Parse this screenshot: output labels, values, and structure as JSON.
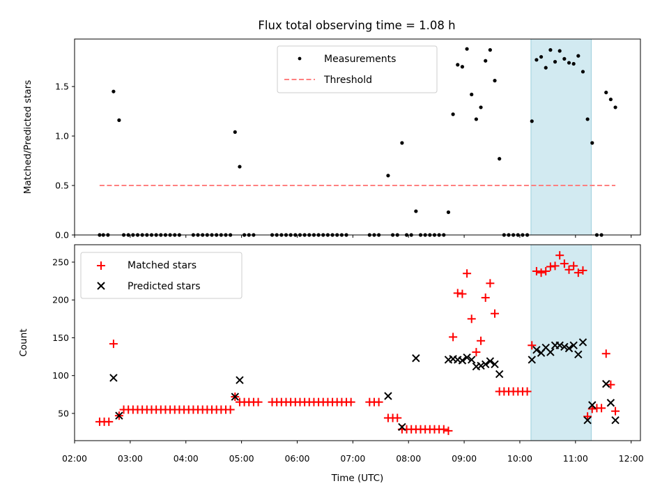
{
  "figure": {
    "title": "Flux total observing time = 1.08 h"
  },
  "chart_data": [
    {
      "type": "scatter",
      "title": "Flux total observing time = 1.08 h",
      "xlabel": "",
      "ylabel": "Matched/Predicted stars",
      "xlim": [
        "02:00",
        "12:10"
      ],
      "ylim": [
        0,
        1.98
      ],
      "yticks": [
        "0.0",
        "0.5",
        "1.0",
        "1.5"
      ],
      "grid": false,
      "legend_position": "top-center",
      "highlight_span": [
        "10:12",
        "11:17"
      ],
      "highlight_color": "#add8e6",
      "series": [
        {
          "name": "Measurements",
          "color": "#000000",
          "marker": "dot",
          "points": [
            [
              "02:27",
              0
            ],
            [
              "02:31",
              0
            ],
            [
              "02:36",
              0
            ],
            [
              "02:42",
              1.45
            ],
            [
              "02:48",
              1.16
            ],
            [
              "02:53",
              0
            ],
            [
              "02:58",
              0
            ],
            [
              "03:03",
              0
            ],
            [
              "03:08",
              0
            ],
            [
              "03:13",
              0
            ],
            [
              "03:18",
              0
            ],
            [
              "03:23",
              0
            ],
            [
              "03:28",
              0
            ],
            [
              "03:33",
              0
            ],
            [
              "03:38",
              0
            ],
            [
              "03:43",
              0
            ],
            [
              "03:48",
              0
            ],
            [
              "03:53",
              0
            ],
            [
              "04:08",
              0
            ],
            [
              "04:13",
              0
            ],
            [
              "04:18",
              0
            ],
            [
              "04:23",
              0
            ],
            [
              "04:28",
              0
            ],
            [
              "04:33",
              0
            ],
            [
              "04:38",
              0
            ],
            [
              "04:43",
              0
            ],
            [
              "04:48",
              0
            ],
            [
              "04:53",
              1.04
            ],
            [
              "04:58",
              0.69
            ],
            [
              "05:03",
              0
            ],
            [
              "05:08",
              0
            ],
            [
              "05:13",
              0
            ],
            [
              "05:33",
              0
            ],
            [
              "05:38",
              0
            ],
            [
              "05:43",
              0
            ],
            [
              "05:48",
              0
            ],
            [
              "05:53",
              0
            ],
            [
              "05:58",
              0
            ],
            [
              "06:03",
              0
            ],
            [
              "06:08",
              0
            ],
            [
              "06:13",
              0
            ],
            [
              "06:18",
              0
            ],
            [
              "06:23",
              0
            ],
            [
              "06:28",
              0
            ],
            [
              "06:33",
              0
            ],
            [
              "06:38",
              0
            ],
            [
              "06:43",
              0
            ],
            [
              "06:48",
              0
            ],
            [
              "06:53",
              0
            ],
            [
              "07:18",
              0
            ],
            [
              "07:23",
              0
            ],
            [
              "07:28",
              0
            ],
            [
              "07:38",
              0.6
            ],
            [
              "07:43",
              0
            ],
            [
              "07:48",
              0
            ],
            [
              "07:53",
              0.93
            ],
            [
              "07:58",
              0
            ],
            [
              "08:03",
              0
            ],
            [
              "08:08",
              0.24
            ],
            [
              "08:13",
              0
            ],
            [
              "08:18",
              0
            ],
            [
              "08:23",
              0
            ],
            [
              "08:28",
              0
            ],
            [
              "08:33",
              0
            ],
            [
              "08:38",
              0
            ],
            [
              "08:43",
              0.23
            ],
            [
              "08:48",
              1.22
            ],
            [
              "08:53",
              1.72
            ],
            [
              "08:58",
              1.7
            ],
            [
              "09:03",
              1.88
            ],
            [
              "09:08",
              1.42
            ],
            [
              "09:13",
              1.17
            ],
            [
              "09:18",
              1.29
            ],
            [
              "09:23",
              1.76
            ],
            [
              "09:28",
              1.87
            ],
            [
              "09:33",
              1.56
            ],
            [
              "09:38",
              0.77
            ],
            [
              "09:43",
              0
            ],
            [
              "09:48",
              0
            ],
            [
              "09:53",
              0
            ],
            [
              "09:58",
              0
            ],
            [
              "10:03",
              0
            ],
            [
              "10:08",
              0
            ],
            [
              "10:13",
              1.15
            ],
            [
              "10:18",
              1.77
            ],
            [
              "10:23",
              1.8
            ],
            [
              "10:28",
              1.69
            ],
            [
              "10:33",
              1.87
            ],
            [
              "10:38",
              1.75
            ],
            [
              "10:43",
              1.86
            ],
            [
              "10:48",
              1.78
            ],
            [
              "10:53",
              1.74
            ],
            [
              "10:58",
              1.73
            ],
            [
              "11:03",
              1.81
            ],
            [
              "11:08",
              1.65
            ],
            [
              "11:13",
              1.17
            ],
            [
              "11:18",
              0.93
            ],
            [
              "11:23",
              0
            ],
            [
              "11:28",
              0
            ],
            [
              "11:33",
              1.44
            ],
            [
              "11:38",
              1.37
            ],
            [
              "11:43",
              1.29
            ]
          ]
        },
        {
          "name": "Threshold",
          "color": "#ff8080",
          "style": "dashed",
          "points": [
            [
              "02:27",
              0.5
            ],
            [
              "11:43",
              0.5
            ]
          ]
        }
      ]
    },
    {
      "type": "scatter",
      "title": "",
      "xlabel": "Time (UTC)",
      "ylabel": "Count",
      "xlim": [
        "02:00",
        "12:10"
      ],
      "ylim": [
        14,
        273
      ],
      "yticks": [
        "50",
        "100",
        "150",
        "200",
        "250"
      ],
      "xticks": [
        "02:00",
        "03:00",
        "04:00",
        "05:00",
        "06:00",
        "07:00",
        "08:00",
        "09:00",
        "10:00",
        "11:00",
        "12:00"
      ],
      "grid": false,
      "legend_position": "top-left",
      "highlight_span": [
        "10:12",
        "11:17"
      ],
      "highlight_color": "#add8e6",
      "series": [
        {
          "name": "Matched stars",
          "color": "#ff0000",
          "marker": "plus",
          "points": [
            [
              "02:27",
              39
            ],
            [
              "02:32",
              39
            ],
            [
              "02:37",
              39
            ],
            [
              "02:42",
              142
            ],
            [
              "02:48",
              47
            ],
            [
              "02:53",
              55
            ],
            [
              "02:58",
              55
            ],
            [
              "03:03",
              55
            ],
            [
              "03:08",
              55
            ],
            [
              "03:13",
              55
            ],
            [
              "03:18",
              55
            ],
            [
              "03:23",
              55
            ],
            [
              "03:28",
              55
            ],
            [
              "03:33",
              55
            ],
            [
              "03:38",
              55
            ],
            [
              "03:43",
              55
            ],
            [
              "03:48",
              55
            ],
            [
              "03:53",
              55
            ],
            [
              "03:58",
              55
            ],
            [
              "04:03",
              55
            ],
            [
              "04:08",
              55
            ],
            [
              "04:13",
              55
            ],
            [
              "04:18",
              55
            ],
            [
              "04:23",
              55
            ],
            [
              "04:28",
              55
            ],
            [
              "04:33",
              55
            ],
            [
              "04:38",
              55
            ],
            [
              "04:43",
              55
            ],
            [
              "04:48",
              55
            ],
            [
              "04:53",
              72
            ],
            [
              "04:58",
              65
            ],
            [
              "05:03",
              65
            ],
            [
              "05:08",
              65
            ],
            [
              "05:13",
              65
            ],
            [
              "05:18",
              65
            ],
            [
              "05:33",
              65
            ],
            [
              "05:38",
              65
            ],
            [
              "05:43",
              65
            ],
            [
              "05:48",
              65
            ],
            [
              "05:53",
              65
            ],
            [
              "05:58",
              65
            ],
            [
              "06:03",
              65
            ],
            [
              "06:08",
              65
            ],
            [
              "06:13",
              65
            ],
            [
              "06:18",
              65
            ],
            [
              "06:23",
              65
            ],
            [
              "06:28",
              65
            ],
            [
              "06:33",
              65
            ],
            [
              "06:38",
              65
            ],
            [
              "06:43",
              65
            ],
            [
              "06:48",
              65
            ],
            [
              "06:53",
              65
            ],
            [
              "06:58",
              65
            ],
            [
              "07:18",
              65
            ],
            [
              "07:23",
              65
            ],
            [
              "07:28",
              65
            ],
            [
              "07:38",
              44
            ],
            [
              "07:43",
              44
            ],
            [
              "07:48",
              44
            ],
            [
              "07:53",
              29
            ],
            [
              "07:58",
              29
            ],
            [
              "08:03",
              29
            ],
            [
              "08:08",
              29
            ],
            [
              "08:13",
              29
            ],
            [
              "08:18",
              29
            ],
            [
              "08:23",
              29
            ],
            [
              "08:28",
              29
            ],
            [
              "08:33",
              29
            ],
            [
              "08:38",
              29
            ],
            [
              "08:43",
              27
            ],
            [
              "08:48",
              151
            ],
            [
              "08:53",
              209
            ],
            [
              "08:58",
              208
            ],
            [
              "09:03",
              235
            ],
            [
              "09:08",
              175
            ],
            [
              "09:13",
              131
            ],
            [
              "09:18",
              146
            ],
            [
              "09:23",
              203
            ],
            [
              "09:28",
              222
            ],
            [
              "09:33",
              182
            ],
            [
              "09:38",
              79
            ],
            [
              "09:43",
              79
            ],
            [
              "09:48",
              79
            ],
            [
              "09:53",
              79
            ],
            [
              "09:58",
              79
            ],
            [
              "10:03",
              79
            ],
            [
              "10:08",
              79
            ],
            [
              "10:13",
              140
            ],
            [
              "10:18",
              238
            ],
            [
              "10:23",
              236
            ],
            [
              "10:28",
              238
            ],
            [
              "10:33",
              244
            ],
            [
              "10:38",
              245
            ],
            [
              "10:43",
              259
            ],
            [
              "10:48",
              248
            ],
            [
              "10:53",
              240
            ],
            [
              "10:58",
              245
            ],
            [
              "11:03",
              236
            ],
            [
              "11:08",
              239
            ],
            [
              "11:13",
              46
            ],
            [
              "11:18",
              56
            ],
            [
              "11:23",
              57
            ],
            [
              "11:28",
              57
            ],
            [
              "11:33",
              129
            ],
            [
              "11:38",
              88
            ],
            [
              "11:43",
              53
            ]
          ]
        },
        {
          "name": "Predicted stars",
          "color": "#000000",
          "marker": "x",
          "points": [
            [
              "02:42",
              97
            ],
            [
              "02:48",
              47
            ],
            [
              "04:53",
              72
            ],
            [
              "04:58",
              94
            ],
            [
              "07:38",
              73
            ],
            [
              "07:53",
              32
            ],
            [
              "08:08",
              123
            ],
            [
              "08:43",
              121
            ],
            [
              "08:48",
              122
            ],
            [
              "08:53",
              121
            ],
            [
              "08:58",
              120
            ],
            [
              "09:03",
              124
            ],
            [
              "09:08",
              121
            ],
            [
              "09:13",
              112
            ],
            [
              "09:18",
              113
            ],
            [
              "09:23",
              115
            ],
            [
              "09:28",
              119
            ],
            [
              "09:33",
              115
            ],
            [
              "09:38",
              102
            ],
            [
              "10:13",
              121
            ],
            [
              "10:18",
              134
            ],
            [
              "10:23",
              130
            ],
            [
              "10:28",
              137
            ],
            [
              "10:33",
              131
            ],
            [
              "10:38",
              140
            ],
            [
              "10:43",
              140
            ],
            [
              "10:48",
              138
            ],
            [
              "10:53",
              136
            ],
            [
              "10:58",
              140
            ],
            [
              "11:03",
              128
            ],
            [
              "11:08",
              144
            ],
            [
              "11:13",
              41
            ],
            [
              "11:18",
              61
            ],
            [
              "11:33",
              89
            ],
            [
              "11:38",
              64
            ],
            [
              "11:43",
              41
            ]
          ]
        }
      ]
    }
  ]
}
